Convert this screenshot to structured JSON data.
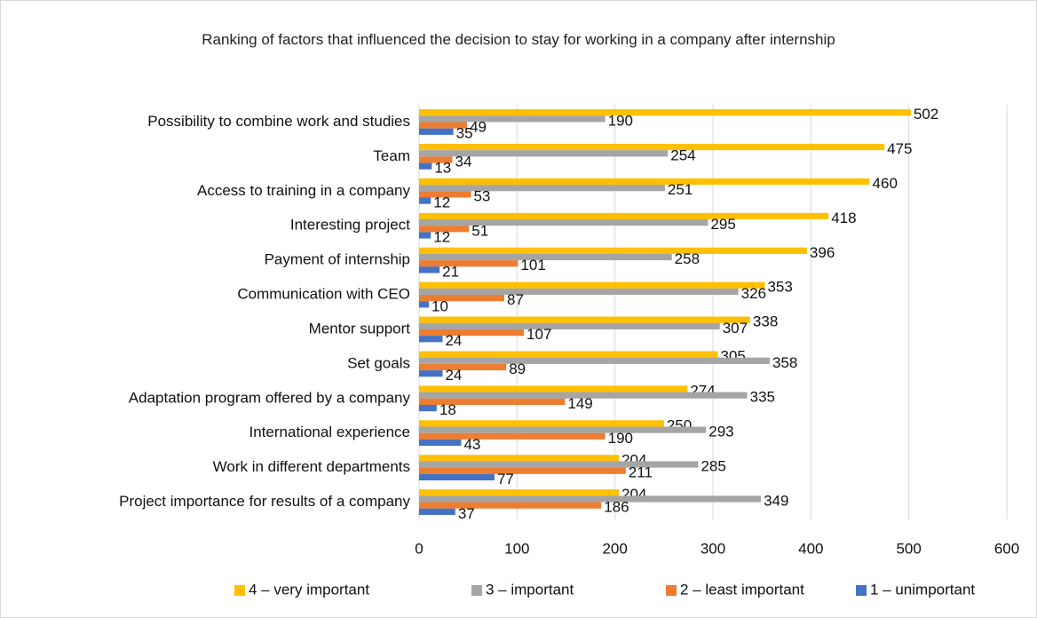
{
  "chart_data": {
    "type": "bar",
    "orientation": "horizontal",
    "title": "Ranking of factors that influenced the decision to stay for working in a company after internship",
    "categories": [
      "Possibility to combine work and studies",
      "Team",
      "Access to training in a company",
      "Interesting project",
      "Payment of internship",
      "Communication with CEO",
      "Mentor support",
      "Set goals",
      "Adaptation program offered by a company",
      "International experience",
      "Work in different departments",
      "Project importance for results of a company"
    ],
    "series": [
      {
        "name": "4 – very important",
        "color": "#ffc000",
        "values": [
          502,
          475,
          460,
          418,
          396,
          353,
          338,
          305,
          274,
          250,
          204,
          204
        ]
      },
      {
        "name": "3 – important",
        "color": "#a5a5a5",
        "values": [
          190,
          254,
          251,
          295,
          258,
          326,
          307,
          358,
          335,
          293,
          285,
          349
        ]
      },
      {
        "name": "2 – least important",
        "color": "#ed7d31",
        "values": [
          49,
          34,
          53,
          51,
          101,
          87,
          107,
          89,
          149,
          190,
          211,
          186
        ]
      },
      {
        "name": "1 – unimportant",
        "color": "#4472c4",
        "values": [
          35,
          13,
          12,
          12,
          21,
          10,
          24,
          24,
          18,
          43,
          77,
          37
        ]
      }
    ],
    "xlim": [
      0,
      600
    ],
    "xticks": [
      0,
      100,
      200,
      300,
      400,
      500,
      600
    ],
    "grid": true,
    "legend": "bottom"
  }
}
